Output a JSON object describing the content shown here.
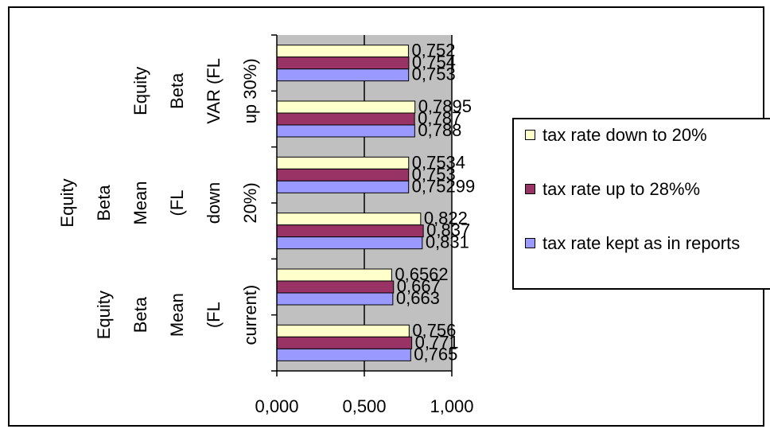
{
  "chart_data": {
    "type": "bar",
    "orientation": "horizontal",
    "categories": [
      "Equity Beta Mean (FL current)",
      "Equity Beta Mean (FL down 20%)",
      "Equity Beta VAR (FL up 30%)"
    ],
    "category_label_lines": [
      [
        "Equity",
        "Beta",
        "Mean",
        "(FL",
        "current)"
      ],
      [
        "Equity",
        "Beta",
        "Mean",
        "(FL",
        "down",
        "20%)"
      ],
      [
        "Equity",
        "Beta",
        "VAR (FL",
        "up 30%)"
      ]
    ],
    "series": [
      {
        "name": "tax rate down to 20%",
        "color": "#FFFFCC"
      },
      {
        "name": "tax rate up to 28%%",
        "color": "#993366"
      },
      {
        "name": "tax rate kept as in reports",
        "color": "#9999FF"
      }
    ],
    "groups": [
      {
        "values": [
          0.756,
          0.771,
          0.765
        ],
        "labels": [
          "0,756",
          "0,771",
          "0,765"
        ]
      },
      {
        "values": [
          0.6562,
          0.667,
          0.663
        ],
        "labels": [
          "0,6562",
          "0,667",
          "0,663"
        ]
      },
      {
        "values": [
          0.822,
          0.837,
          0.831
        ],
        "labels": [
          "0,822",
          "0,837",
          "0,831"
        ]
      },
      {
        "values": [
          0.7534,
          0.753,
          0.75299
        ],
        "labels": [
          "0,7534",
          "0,753",
          "0,75299"
        ]
      },
      {
        "values": [
          0.7895,
          0.787,
          0.788
        ],
        "labels": [
          "0,7895",
          "0,787",
          "0,788"
        ]
      },
      {
        "values": [
          0.752,
          0.754,
          0.753
        ],
        "labels": [
          "0,752",
          "0,754",
          "0,753"
        ]
      }
    ],
    "xlim": [
      0,
      1
    ],
    "xticks": [
      0,
      0.5,
      1
    ],
    "xtick_labels": [
      "0,000",
      "0,500",
      "1,000"
    ],
    "plot_background": "#C0C0C0",
    "grid": true,
    "legend_position": "right",
    "legend": [
      "tax rate down to 20%",
      "tax rate up to 28%%",
      "tax rate kept as in reports"
    ]
  }
}
